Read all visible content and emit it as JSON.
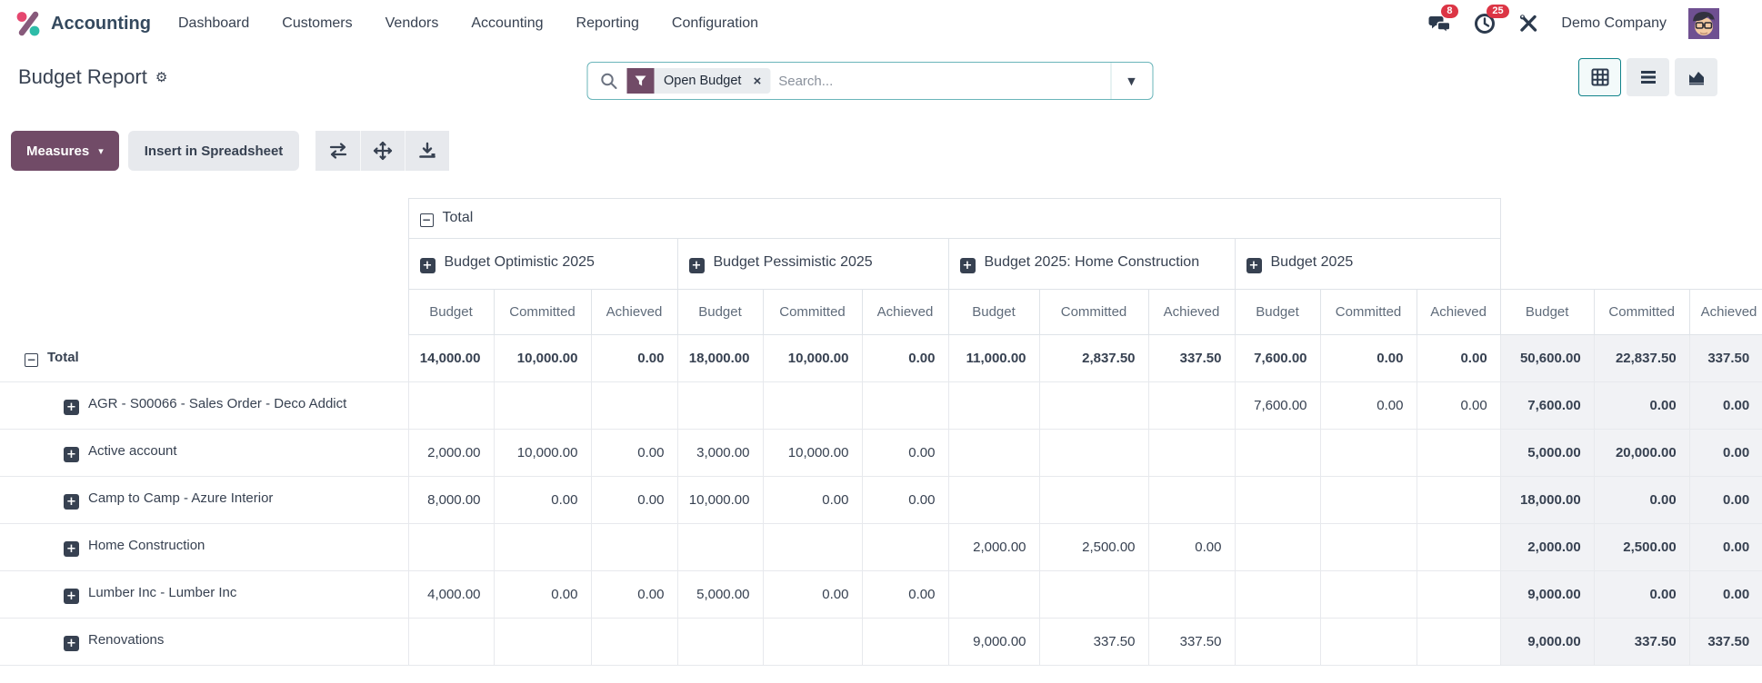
{
  "colors": {
    "primary": "#714B67",
    "accent_teal": "#11838a",
    "badge_red": "#dc3545"
  },
  "icons": {
    "caret_down": "▾",
    "toggle_caret": "▼",
    "close": "×",
    "gear": "⚙",
    "plus": "+",
    "minus": "−"
  },
  "nav": {
    "app_name": "Accounting",
    "menu_items": [
      "Dashboard",
      "Customers",
      "Vendors",
      "Accounting",
      "Reporting",
      "Configuration"
    ],
    "messages_badge": "8",
    "activities_badge": "25",
    "company": "Demo Company"
  },
  "control_panel": {
    "title": "Budget Report",
    "search": {
      "facet_label": "Open Budget",
      "placeholder": "Search..."
    },
    "views": [
      "pivot",
      "list",
      "graph"
    ],
    "active_view": "pivot"
  },
  "toolbar": {
    "measures_label": "Measures",
    "insert_label": "Insert in Spreadsheet"
  },
  "pivot": {
    "top_header": "Total",
    "measures": [
      "Budget",
      "Committed",
      "Achieved"
    ],
    "groups": [
      {
        "label": "Budget Optimistic 2025"
      },
      {
        "label": "Budget Pessimistic 2025"
      },
      {
        "label": "Budget 2025: Home Construction"
      },
      {
        "label": "Budget 2025"
      }
    ],
    "rows": [
      {
        "label": "Total",
        "level": 0,
        "bold": true,
        "cells": [
          "14,000.00",
          "10,000.00",
          "0.00",
          "18,000.00",
          "10,000.00",
          "0.00",
          "11,000.00",
          "2,837.50",
          "337.50",
          "7,600.00",
          "0.00",
          "0.00",
          "50,600.00",
          "22,837.50",
          "337.50"
        ]
      },
      {
        "label": "AGR - S00066 - Sales Order - Deco Addict",
        "level": 1,
        "bold": false,
        "cells": [
          "",
          "",
          "",
          "",
          "",
          "",
          "",
          "",
          "",
          "7,600.00",
          "0.00",
          "0.00",
          "7,600.00",
          "0.00",
          "0.00"
        ]
      },
      {
        "label": "Active account",
        "level": 1,
        "bold": false,
        "cells": [
          "2,000.00",
          "10,000.00",
          "0.00",
          "3,000.00",
          "10,000.00",
          "0.00",
          "",
          "",
          "",
          "",
          "",
          "",
          "5,000.00",
          "20,000.00",
          "0.00"
        ]
      },
      {
        "label": "Camp to Camp - Azure Interior",
        "level": 1,
        "bold": false,
        "cells": [
          "8,000.00",
          "0.00",
          "0.00",
          "10,000.00",
          "0.00",
          "0.00",
          "",
          "",
          "",
          "",
          "",
          "",
          "18,000.00",
          "0.00",
          "0.00"
        ]
      },
      {
        "label": "Home Construction",
        "level": 1,
        "bold": false,
        "cells": [
          "",
          "",
          "",
          "",
          "",
          "",
          "2,000.00",
          "2,500.00",
          "0.00",
          "",
          "",
          "",
          "2,000.00",
          "2,500.00",
          "0.00"
        ]
      },
      {
        "label": "Lumber Inc - Lumber Inc",
        "level": 1,
        "bold": false,
        "cells": [
          "4,000.00",
          "0.00",
          "0.00",
          "5,000.00",
          "0.00",
          "0.00",
          "",
          "",
          "",
          "",
          "",
          "",
          "9,000.00",
          "0.00",
          "0.00"
        ]
      },
      {
        "label": "Renovations",
        "level": 1,
        "bold": false,
        "cells": [
          "",
          "",
          "",
          "",
          "",
          "",
          "9,000.00",
          "337.50",
          "337.50",
          "",
          "",
          "",
          "9,000.00",
          "337.50",
          "337.50"
        ]
      }
    ]
  }
}
